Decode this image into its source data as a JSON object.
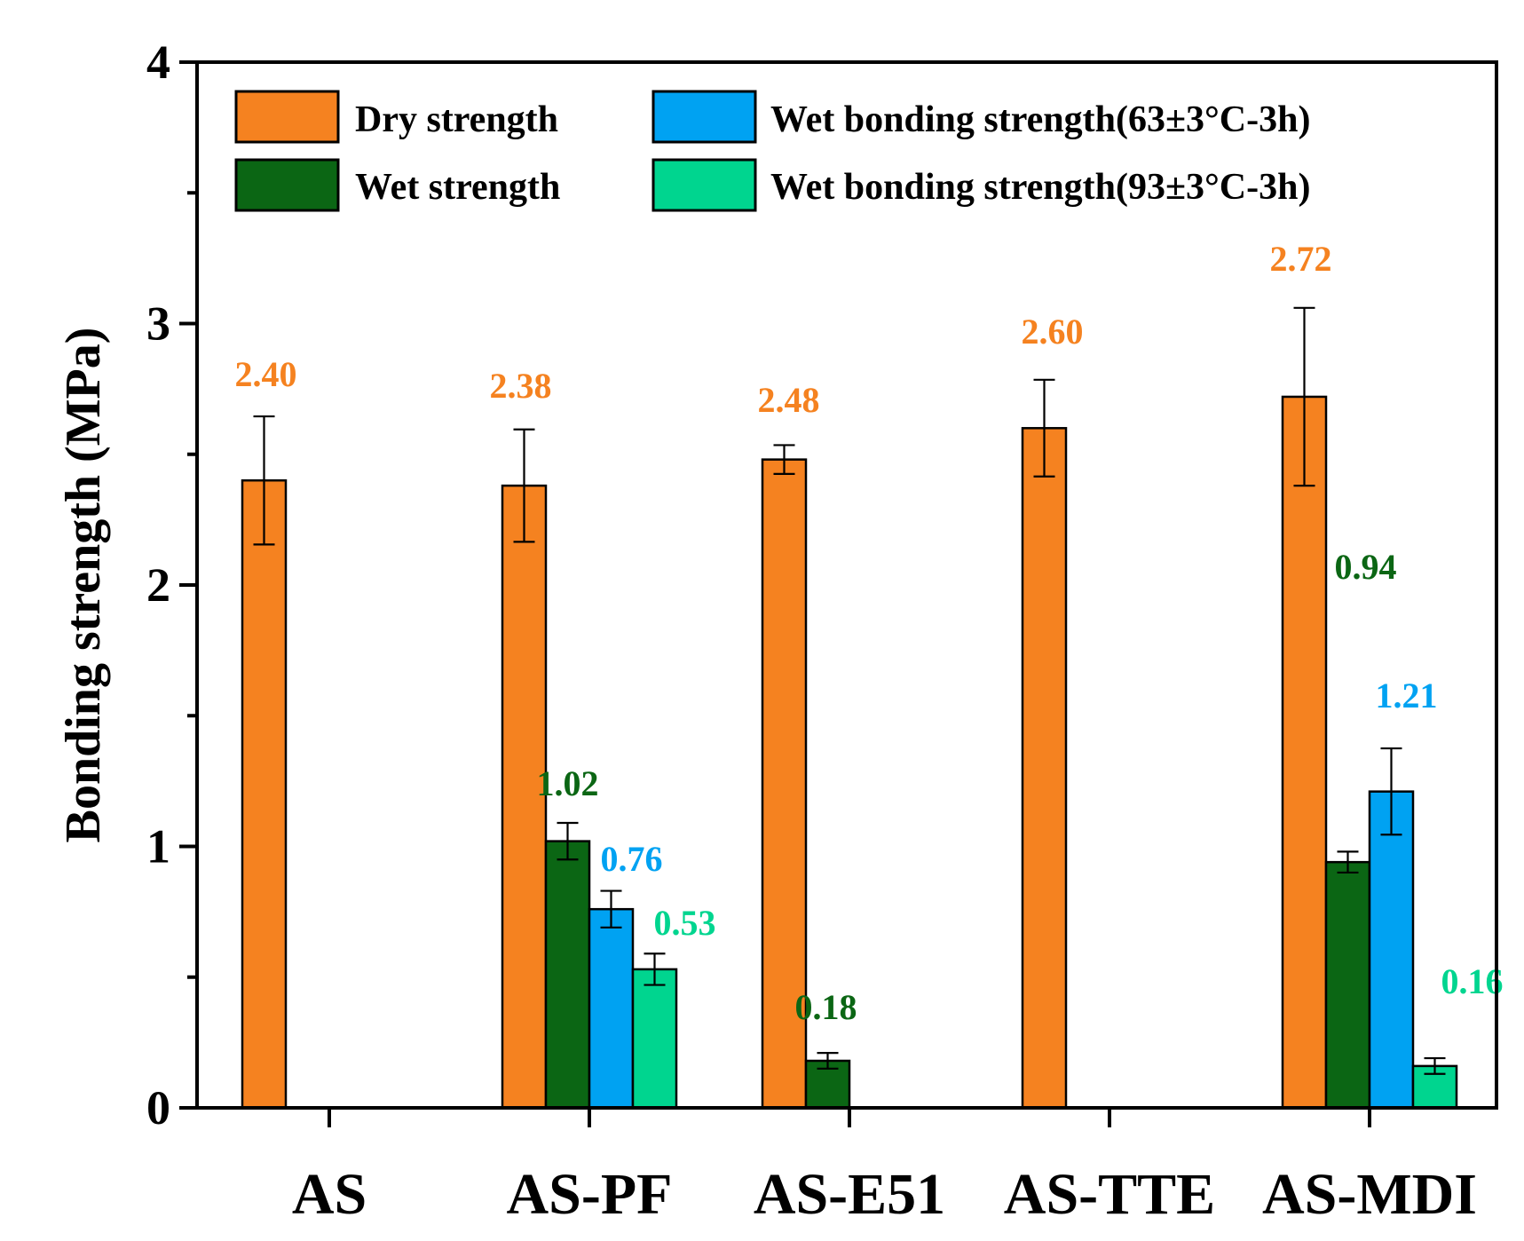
{
  "chart_data": {
    "type": "bar",
    "title": "",
    "xlabel": "",
    "ylabel": "Bonding strength (MPa)",
    "ylim": [
      0,
      4
    ],
    "yticks": [
      0,
      1,
      2,
      3,
      4
    ],
    "grid": false,
    "legend_position": "top",
    "categories": [
      "AS",
      "AS-PF",
      "AS-E51",
      "AS-TTE",
      "AS-MDI"
    ],
    "series": [
      {
        "name": "Dry strength",
        "color": "#F58220",
        "values": [
          2.4,
          2.38,
          2.48,
          2.6,
          2.72
        ],
        "errors": [
          0.245,
          0.215,
          0.055,
          0.185,
          0.34
        ],
        "labels": [
          "2.40",
          "2.38",
          "2.48",
          "2.60",
          "2.72"
        ]
      },
      {
        "name": "Wet strength",
        "color": "#0B6614",
        "values": [
          null,
          1.02,
          0.18,
          null,
          0.94
        ],
        "errors": [
          null,
          0.07,
          0.03,
          null,
          0.04
        ],
        "labels": [
          null,
          "1.02",
          "0.18",
          null,
          "0.94"
        ]
      },
      {
        "name": "Wet bonding strength(63±3°C-3h)",
        "color": "#00A2F2",
        "values": [
          null,
          0.76,
          null,
          null,
          1.21
        ],
        "errors": [
          null,
          0.07,
          null,
          null,
          0.165
        ],
        "labels": [
          null,
          "0.76",
          null,
          null,
          "1.21"
        ]
      },
      {
        "name": "Wet bonding strength(93±3°C-3h)",
        "color": "#00D58F",
        "values": [
          null,
          0.53,
          null,
          null,
          0.16
        ],
        "errors": [
          null,
          0.06,
          null,
          null,
          0.03
        ],
        "labels": [
          null,
          "0.53",
          null,
          null,
          "0.16"
        ]
      }
    ]
  }
}
